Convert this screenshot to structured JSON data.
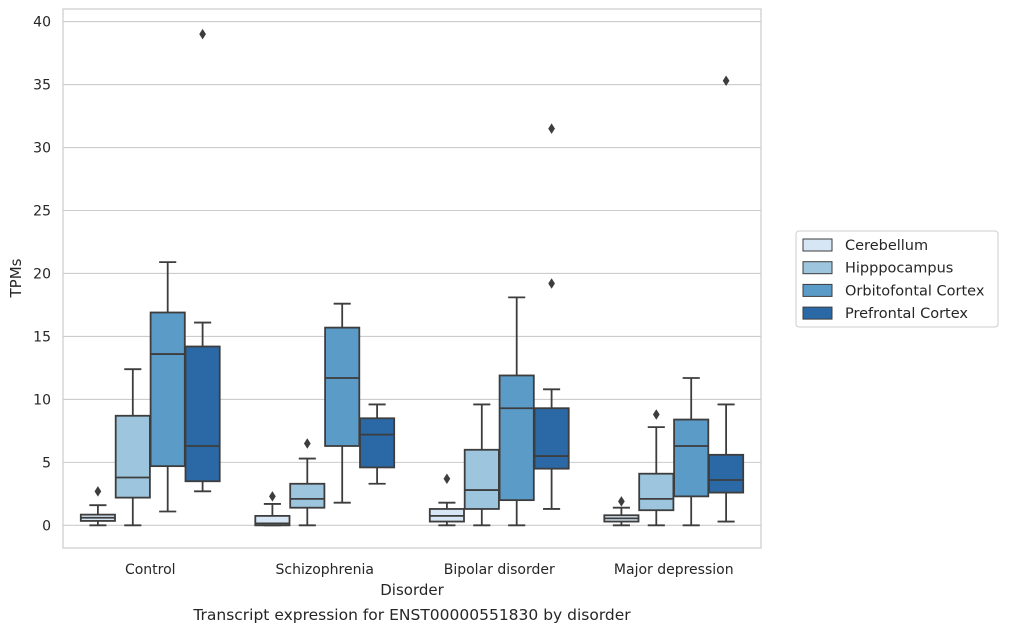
{
  "caption": "Transcript expression for ENST00000551830 by disorder",
  "chart_data": {
    "type": "boxplot",
    "xlabel": "Disorder",
    "ylabel": "TPMs",
    "ylim": [
      -1.8,
      41
    ],
    "yticks": [
      0,
      5,
      10,
      15,
      20,
      25,
      30,
      35,
      40
    ],
    "grid": "horizontal",
    "legend_position": "right",
    "categories": [
      "Control",
      "Schizophrenia",
      "Bipolar disorder",
      "Major depression"
    ],
    "series": [
      {
        "name": "Cerebellum",
        "color": "#d6e6f4",
        "boxes": [
          {
            "whisker_low": 0.0,
            "q1": 0.35,
            "median": 0.6,
            "q3": 0.85,
            "whisker_high": 1.6,
            "outliers": [
              2.7
            ]
          },
          {
            "whisker_low": 0.0,
            "q1": 0.0,
            "median": 0.15,
            "q3": 0.75,
            "whisker_high": 1.7,
            "outliers": [
              2.3
            ]
          },
          {
            "whisker_low": 0.0,
            "q1": 0.3,
            "median": 0.75,
            "q3": 1.3,
            "whisker_high": 1.8,
            "outliers": [
              3.7
            ]
          },
          {
            "whisker_low": 0.0,
            "q1": 0.3,
            "median": 0.55,
            "q3": 0.8,
            "whisker_high": 1.4,
            "outliers": [
              1.9
            ]
          }
        ]
      },
      {
        "name": "Hipppocampus",
        "color": "#9dc5de",
        "boxes": [
          {
            "whisker_low": 0.0,
            "q1": 2.2,
            "median": 3.8,
            "q3": 8.7,
            "whisker_high": 12.4,
            "outliers": []
          },
          {
            "whisker_low": 0.0,
            "q1": 1.4,
            "median": 2.1,
            "q3": 3.3,
            "whisker_high": 5.3,
            "outliers": [
              6.5
            ]
          },
          {
            "whisker_low": 0.0,
            "q1": 1.3,
            "median": 2.8,
            "q3": 6.0,
            "whisker_high": 9.6,
            "outliers": []
          },
          {
            "whisker_low": 0.0,
            "q1": 1.2,
            "median": 2.1,
            "q3": 4.1,
            "whisker_high": 7.8,
            "outliers": [
              8.8
            ]
          }
        ]
      },
      {
        "name": "Orbitofontal Cortex",
        "color": "#5b9bc8",
        "boxes": [
          {
            "whisker_low": 1.1,
            "q1": 4.7,
            "median": 13.6,
            "q3": 16.9,
            "whisker_high": 20.9,
            "outliers": []
          },
          {
            "whisker_low": 1.8,
            "q1": 6.3,
            "median": 11.7,
            "q3": 15.7,
            "whisker_high": 17.6,
            "outliers": []
          },
          {
            "whisker_low": 0.0,
            "q1": 2.0,
            "median": 9.3,
            "q3": 11.9,
            "whisker_high": 18.1,
            "outliers": []
          },
          {
            "whisker_low": 0.0,
            "q1": 2.3,
            "median": 6.3,
            "q3": 8.4,
            "whisker_high": 11.7,
            "outliers": []
          }
        ]
      },
      {
        "name": "Prefrontal Cortex",
        "color": "#2b69a6",
        "boxes": [
          {
            "whisker_low": 2.7,
            "q1": 3.5,
            "median": 6.3,
            "q3": 14.2,
            "whisker_high": 16.1,
            "outliers": [
              39.0
            ]
          },
          {
            "whisker_low": 3.3,
            "q1": 4.6,
            "median": 7.2,
            "q3": 8.5,
            "whisker_high": 9.6,
            "outliers": []
          },
          {
            "whisker_low": 1.3,
            "q1": 4.5,
            "median": 5.5,
            "q3": 9.3,
            "whisker_high": 10.8,
            "outliers": [
              19.2,
              31.5
            ]
          },
          {
            "whisker_low": 0.3,
            "q1": 2.6,
            "median": 3.6,
            "q3": 5.6,
            "whisker_high": 9.6,
            "outliers": [
              35.3
            ]
          }
        ]
      }
    ]
  }
}
